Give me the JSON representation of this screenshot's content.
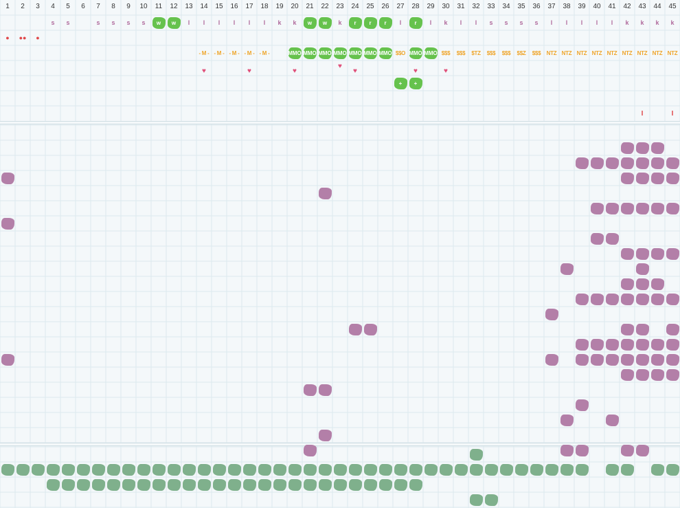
{
  "columns": [
    "1",
    "2",
    "3",
    "4",
    "5",
    "6",
    "7",
    "8",
    "9",
    "10",
    "11",
    "12",
    "13",
    "14",
    "15",
    "16",
    "17",
    "18",
    "19",
    "20",
    "21",
    "22",
    "23",
    "24",
    "25",
    "26",
    "27",
    "28",
    "29",
    "30",
    "31",
    "32",
    "33",
    "34",
    "35",
    "36",
    "37",
    "38",
    "39",
    "40",
    "41",
    "42",
    "43",
    "44",
    "45"
  ],
  "colors": {
    "grid_line": "#dce9ee",
    "green_blob": "#66c24d",
    "purple_blob": "#b37fa8",
    "teal_blob": "#7fb08c",
    "purple_text": "#b06a9c",
    "orange_text": "#efa52a",
    "heart": "#e0507a",
    "red": "#e0484a"
  },
  "cells": [
    {
      "r": 1,
      "c": 4,
      "k": "purple-text",
      "t": "s"
    },
    {
      "r": 1,
      "c": 5,
      "k": "purple-text",
      "t": "s"
    },
    {
      "r": 1,
      "c": 7,
      "k": "purple-text",
      "t": "s"
    },
    {
      "r": 1,
      "c": 8,
      "k": "purple-text",
      "t": "s"
    },
    {
      "r": 1,
      "c": 9,
      "k": "purple-text",
      "t": "s"
    },
    {
      "r": 1,
      "c": 10,
      "k": "purple-text",
      "t": "s"
    },
    {
      "r": 1,
      "c": 11,
      "k": "g",
      "t": "w"
    },
    {
      "r": 1,
      "c": 12,
      "k": "g",
      "t": "w"
    },
    {
      "r": 1,
      "c": 13,
      "k": "purple-text",
      "t": "l"
    },
    {
      "r": 1,
      "c": 14,
      "k": "purple-text",
      "t": "l"
    },
    {
      "r": 1,
      "c": 15,
      "k": "purple-text",
      "t": "l"
    },
    {
      "r": 1,
      "c": 16,
      "k": "purple-text",
      "t": "l"
    },
    {
      "r": 1,
      "c": 17,
      "k": "purple-text",
      "t": "l"
    },
    {
      "r": 1,
      "c": 18,
      "k": "purple-text",
      "t": "l"
    },
    {
      "r": 1,
      "c": 19,
      "k": "purple-text",
      "t": "k"
    },
    {
      "r": 1,
      "c": 20,
      "k": "purple-text",
      "t": "k"
    },
    {
      "r": 1,
      "c": 21,
      "k": "g",
      "t": "w"
    },
    {
      "r": 1,
      "c": 22,
      "k": "g",
      "t": "w"
    },
    {
      "r": 1,
      "c": 23,
      "k": "purple-text",
      "t": "k"
    },
    {
      "r": 1,
      "c": 24,
      "k": "g",
      "t": "r"
    },
    {
      "r": 1,
      "c": 25,
      "k": "g",
      "t": "r"
    },
    {
      "r": 1,
      "c": 26,
      "k": "g",
      "t": "r"
    },
    {
      "r": 1,
      "c": 27,
      "k": "purple-text",
      "t": "l"
    },
    {
      "r": 1,
      "c": 28,
      "k": "g",
      "t": "r"
    },
    {
      "r": 1,
      "c": 29,
      "k": "purple-text",
      "t": "l"
    },
    {
      "r": 1,
      "c": 30,
      "k": "purple-text",
      "t": "k"
    },
    {
      "r": 1,
      "c": 31,
      "k": "purple-text",
      "t": "l"
    },
    {
      "r": 1,
      "c": 32,
      "k": "purple-text",
      "t": "l"
    },
    {
      "r": 1,
      "c": 33,
      "k": "purple-text",
      "t": "s"
    },
    {
      "r": 1,
      "c": 34,
      "k": "purple-text",
      "t": "s"
    },
    {
      "r": 1,
      "c": 35,
      "k": "purple-text",
      "t": "s"
    },
    {
      "r": 1,
      "c": 36,
      "k": "purple-text",
      "t": "s"
    },
    {
      "r": 1,
      "c": 37,
      "k": "purple-text",
      "t": "l"
    },
    {
      "r": 1,
      "c": 38,
      "k": "purple-text",
      "t": "l"
    },
    {
      "r": 1,
      "c": 39,
      "k": "purple-text",
      "t": "l"
    },
    {
      "r": 1,
      "c": 40,
      "k": "purple-text",
      "t": "l"
    },
    {
      "r": 1,
      "c": 41,
      "k": "purple-text",
      "t": "l"
    },
    {
      "r": 1,
      "c": 42,
      "k": "purple-text",
      "t": "k"
    },
    {
      "r": 1,
      "c": 43,
      "k": "purple-text",
      "t": "k"
    },
    {
      "r": 1,
      "c": 44,
      "k": "purple-text",
      "t": "k"
    },
    {
      "r": 1,
      "c": 45,
      "k": "purple-text",
      "t": "k"
    },
    {
      "r": 2,
      "c": 1,
      "k": "drop",
      "t": "●"
    },
    {
      "r": 2,
      "c": 2,
      "k": "drop",
      "t": "●●"
    },
    {
      "r": 2,
      "c": 3,
      "k": "drop",
      "t": "●"
    },
    {
      "r": 3,
      "c": 14,
      "k": "orange-text",
      "t": "- M -"
    },
    {
      "r": 3,
      "c": 15,
      "k": "orange-text",
      "t": "- M -"
    },
    {
      "r": 3,
      "c": 16,
      "k": "orange-text",
      "t": "- M -"
    },
    {
      "r": 3,
      "c": 17,
      "k": "orange-text",
      "t": "- M -"
    },
    {
      "r": 3,
      "c": 18,
      "k": "orange-text",
      "t": "- M -"
    },
    {
      "r": 3,
      "c": 20,
      "k": "g",
      "t": "MMO"
    },
    {
      "r": 3,
      "c": 21,
      "k": "g",
      "t": "MMO"
    },
    {
      "r": 3,
      "c": 22,
      "k": "g",
      "t": "MMO"
    },
    {
      "r": 3,
      "c": 23,
      "k": "g",
      "t": "MMO"
    },
    {
      "r": 3,
      "c": 24,
      "k": "g",
      "t": "MMO"
    },
    {
      "r": 3,
      "c": 25,
      "k": "g",
      "t": "MMO"
    },
    {
      "r": 3,
      "c": 26,
      "k": "g",
      "t": "MMO"
    },
    {
      "r": 3,
      "c": 27,
      "k": "orange-text",
      "t": "$$O"
    },
    {
      "r": 3,
      "c": 28,
      "k": "g",
      "t": "MMO"
    },
    {
      "r": 3,
      "c": 29,
      "k": "g",
      "t": "MMO"
    },
    {
      "r": 3,
      "c": 30,
      "k": "orange-text",
      "t": "$$$"
    },
    {
      "r": 3,
      "c": 31,
      "k": "orange-text",
      "t": "$$$"
    },
    {
      "r": 3,
      "c": 32,
      "k": "orange-text",
      "t": "$TZ"
    },
    {
      "r": 3,
      "c": 33,
      "k": "orange-text",
      "t": "$$$"
    },
    {
      "r": 3,
      "c": 34,
      "k": "orange-text",
      "t": "$$$"
    },
    {
      "r": 3,
      "c": 35,
      "k": "orange-text",
      "t": "$$Z"
    },
    {
      "r": 3,
      "c": 36,
      "k": "orange-text",
      "t": "$$$"
    },
    {
      "r": 3,
      "c": 37,
      "k": "orange-text",
      "t": "NTZ"
    },
    {
      "r": 3,
      "c": 38,
      "k": "orange-text",
      "t": "NTZ"
    },
    {
      "r": 3,
      "c": 39,
      "k": "orange-text",
      "t": "NTZ"
    },
    {
      "r": 3,
      "c": 40,
      "k": "orange-text",
      "t": "NTZ"
    },
    {
      "r": 3,
      "c": 41,
      "k": "orange-text",
      "t": "NTZ"
    },
    {
      "r": 3,
      "c": 42,
      "k": "orange-text",
      "t": "NTZ"
    },
    {
      "r": 3,
      "c": 43,
      "k": "orange-text",
      "t": "NTZ"
    },
    {
      "r": 3,
      "c": 44,
      "k": "orange-text",
      "t": "NTZ"
    },
    {
      "r": 3,
      "c": 45,
      "k": "orange-text",
      "t": "NTZ"
    },
    {
      "r": 4,
      "c": 14,
      "k": "heart",
      "t": "♥",
      "dy": 4
    },
    {
      "r": 4,
      "c": 17,
      "k": "heart",
      "t": "♥",
      "dy": 4
    },
    {
      "r": 4,
      "c": 20,
      "k": "heart",
      "t": "♥",
      "dy": 4
    },
    {
      "r": 4,
      "c": 23,
      "k": "heart",
      "t": "♥",
      "dy": -3
    },
    {
      "r": 4,
      "c": 24,
      "k": "heart",
      "t": "♥",
      "dy": 4
    },
    {
      "r": 4,
      "c": 28,
      "k": "heart",
      "t": "♥",
      "dy": 4
    },
    {
      "r": 4,
      "c": 30,
      "k": "heart",
      "t": "♥",
      "dy": 4
    },
    {
      "r": 5,
      "c": 27,
      "k": "g",
      "t": "+"
    },
    {
      "r": 5,
      "c": 28,
      "k": "g",
      "t": "+"
    },
    {
      "r": 7,
      "c": 43,
      "k": "red-text",
      "t": "I"
    },
    {
      "r": 7,
      "c": 45,
      "k": "red-text",
      "t": "I"
    }
  ],
  "purple_blobs": [
    [
      9,
      42
    ],
    [
      9,
      43
    ],
    [
      9,
      44
    ],
    [
      10,
      39
    ],
    [
      10,
      40
    ],
    [
      10,
      41
    ],
    [
      10,
      42
    ],
    [
      10,
      43
    ],
    [
      10,
      44
    ],
    [
      10,
      45
    ],
    [
      11,
      1
    ],
    [
      11,
      42
    ],
    [
      11,
      43
    ],
    [
      11,
      44
    ],
    [
      11,
      45
    ],
    [
      12,
      22
    ],
    [
      13,
      40
    ],
    [
      13,
      41
    ],
    [
      13,
      42
    ],
    [
      13,
      43
    ],
    [
      13,
      44
    ],
    [
      13,
      45
    ],
    [
      14,
      1
    ],
    [
      15,
      40
    ],
    [
      15,
      41
    ],
    [
      16,
      42
    ],
    [
      16,
      43
    ],
    [
      16,
      44
    ],
    [
      16,
      45
    ],
    [
      17,
      38
    ],
    [
      17,
      43
    ],
    [
      18,
      42
    ],
    [
      18,
      43
    ],
    [
      18,
      44
    ],
    [
      19,
      39
    ],
    [
      19,
      40
    ],
    [
      19,
      41
    ],
    [
      19,
      42
    ],
    [
      19,
      43
    ],
    [
      19,
      44
    ],
    [
      19,
      45
    ],
    [
      20,
      37
    ],
    [
      21,
      24
    ],
    [
      21,
      25
    ],
    [
      21,
      42
    ],
    [
      21,
      43
    ],
    [
      21,
      45
    ],
    [
      22,
      39
    ],
    [
      22,
      40
    ],
    [
      22,
      41
    ],
    [
      22,
      42
    ],
    [
      22,
      43
    ],
    [
      22,
      44
    ],
    [
      22,
      45
    ],
    [
      23,
      1
    ],
    [
      23,
      37
    ],
    [
      23,
      39
    ],
    [
      23,
      40
    ],
    [
      23,
      41
    ],
    [
      23,
      42
    ],
    [
      23,
      43
    ],
    [
      23,
      44
    ],
    [
      23,
      45
    ],
    [
      24,
      42
    ],
    [
      24,
      43
    ],
    [
      24,
      44
    ],
    [
      24,
      45
    ],
    [
      25,
      21
    ],
    [
      25,
      22
    ],
    [
      26,
      39
    ],
    [
      27,
      38
    ],
    [
      27,
      41
    ],
    [
      28,
      22
    ],
    [
      29,
      21
    ],
    [
      29,
      38
    ],
    [
      29,
      39
    ],
    [
      29,
      42
    ],
    [
      29,
      43
    ]
  ],
  "teal_blobs": [
    [
      30,
      32
    ],
    [
      31,
      1
    ],
    [
      31,
      2
    ],
    [
      31,
      3
    ],
    [
      31,
      4
    ],
    [
      31,
      5
    ],
    [
      31,
      6
    ],
    [
      31,
      7
    ],
    [
      31,
      8
    ],
    [
      31,
      9
    ],
    [
      31,
      10
    ],
    [
      31,
      11
    ],
    [
      31,
      12
    ],
    [
      31,
      13
    ],
    [
      31,
      14
    ],
    [
      31,
      15
    ],
    [
      31,
      16
    ],
    [
      31,
      17
    ],
    [
      31,
      18
    ],
    [
      31,
      19
    ],
    [
      31,
      20
    ],
    [
      31,
      21
    ],
    [
      31,
      22
    ],
    [
      31,
      23
    ],
    [
      31,
      24
    ],
    [
      31,
      25
    ],
    [
      31,
      26
    ],
    [
      31,
      27
    ],
    [
      31,
      28
    ],
    [
      31,
      29
    ],
    [
      31,
      30
    ],
    [
      31,
      31
    ],
    [
      31,
      32
    ],
    [
      31,
      33
    ],
    [
      31,
      34
    ],
    [
      31,
      35
    ],
    [
      31,
      36
    ],
    [
      31,
      37
    ],
    [
      31,
      38
    ],
    [
      31,
      39
    ],
    [
      31,
      41
    ],
    [
      31,
      42
    ],
    [
      31,
      44
    ],
    [
      31,
      45
    ],
    [
      32,
      4
    ],
    [
      32,
      5
    ],
    [
      32,
      6
    ],
    [
      32,
      7
    ],
    [
      32,
      8
    ],
    [
      32,
      9
    ],
    [
      32,
      10
    ],
    [
      32,
      11
    ],
    [
      32,
      12
    ],
    [
      32,
      13
    ],
    [
      32,
      14
    ],
    [
      32,
      15
    ],
    [
      32,
      16
    ],
    [
      32,
      17
    ],
    [
      32,
      18
    ],
    [
      32,
      19
    ],
    [
      32,
      20
    ],
    [
      32,
      21
    ],
    [
      32,
      22
    ],
    [
      32,
      23
    ],
    [
      32,
      24
    ],
    [
      32,
      25
    ],
    [
      32,
      26
    ],
    [
      32,
      27
    ],
    [
      32,
      28
    ],
    [
      33,
      32
    ],
    [
      33,
      33
    ]
  ]
}
